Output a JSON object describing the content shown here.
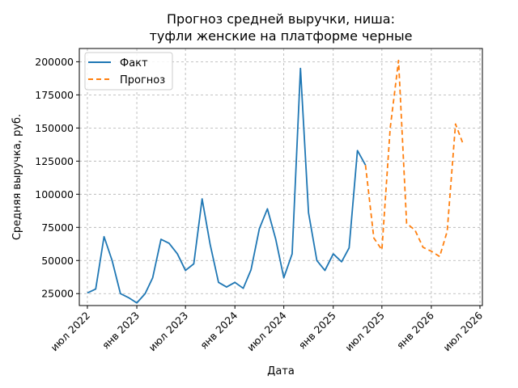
{
  "chart_data": {
    "type": "line",
    "title_lines": [
      "Прогноз средней выручки, ниша:",
      "туфли женские на платформе черные"
    ],
    "xlabel": "Дата",
    "ylabel": "Средняя выручка, руб.",
    "x_axis_type": "date",
    "xlim": [
      "2022-06-01",
      "2026-07-10"
    ],
    "ylim": [
      16000,
      210000
    ],
    "x_ticks": [
      {
        "date": "2022-07-01",
        "label": "июл 2022"
      },
      {
        "date": "2023-01-01",
        "label": "янв 2023"
      },
      {
        "date": "2023-07-01",
        "label": "июл 2023"
      },
      {
        "date": "2024-01-01",
        "label": "янв 2024"
      },
      {
        "date": "2024-07-01",
        "label": "июл 2024"
      },
      {
        "date": "2025-01-01",
        "label": "янв 2025"
      },
      {
        "date": "2025-07-01",
        "label": "июл 2025"
      },
      {
        "date": "2026-01-01",
        "label": "янв 2026"
      },
      {
        "date": "2026-07-01",
        "label": "июл 2026"
      }
    ],
    "y_ticks": [
      25000,
      50000,
      75000,
      100000,
      125000,
      150000,
      175000,
      200000
    ],
    "grid": true,
    "legend_position": "top-left",
    "series": [
      {
        "name": "Факт",
        "color": "#1f77b4",
        "style": "solid",
        "points": [
          [
            "2022-07-01",
            25500
          ],
          [
            "2022-08-01",
            28500
          ],
          [
            "2022-09-01",
            68000
          ],
          [
            "2022-10-01",
            50000
          ],
          [
            "2022-11-01",
            25000
          ],
          [
            "2022-12-01",
            22000
          ],
          [
            "2023-01-01",
            18000
          ],
          [
            "2023-02-01",
            25000
          ],
          [
            "2023-03-01",
            37000
          ],
          [
            "2023-04-01",
            66000
          ],
          [
            "2023-05-01",
            63000
          ],
          [
            "2023-06-01",
            55000
          ],
          [
            "2023-07-01",
            42500
          ],
          [
            "2023-08-01",
            47500
          ],
          [
            "2023-09-01",
            96500
          ],
          [
            "2023-10-01",
            62000
          ],
          [
            "2023-11-01",
            33500
          ],
          [
            "2023-12-01",
            30000
          ],
          [
            "2024-01-01",
            33500
          ],
          [
            "2024-02-01",
            29000
          ],
          [
            "2024-03-01",
            43000
          ],
          [
            "2024-04-01",
            74000
          ],
          [
            "2024-05-01",
            89000
          ],
          [
            "2024-06-01",
            66000
          ],
          [
            "2024-07-01",
            37000
          ],
          [
            "2024-08-01",
            55000
          ],
          [
            "2024-09-01",
            195000
          ],
          [
            "2024-10-01",
            86000
          ],
          [
            "2024-11-01",
            50000
          ],
          [
            "2024-12-01",
            42500
          ],
          [
            "2025-01-01",
            55000
          ],
          [
            "2025-02-01",
            49000
          ],
          [
            "2025-03-01",
            59500
          ],
          [
            "2025-04-01",
            133000
          ],
          [
            "2025-05-01",
            122000
          ]
        ]
      },
      {
        "name": "Прогноз",
        "color": "#ff7f0e",
        "style": "dashed",
        "points": [
          [
            "2025-05-01",
            122000
          ],
          [
            "2025-06-01",
            67000
          ],
          [
            "2025-07-01",
            58000
          ],
          [
            "2025-08-01",
            150000
          ],
          [
            "2025-09-01",
            201000
          ],
          [
            "2025-10-01",
            78000
          ],
          [
            "2025-11-01",
            73000
          ],
          [
            "2025-12-01",
            60000
          ],
          [
            "2026-01-01",
            57000
          ],
          [
            "2026-02-01",
            53000
          ],
          [
            "2026-03-01",
            72000
          ],
          [
            "2026-04-01",
            153000
          ],
          [
            "2026-05-01",
            137000
          ]
        ]
      }
    ]
  }
}
